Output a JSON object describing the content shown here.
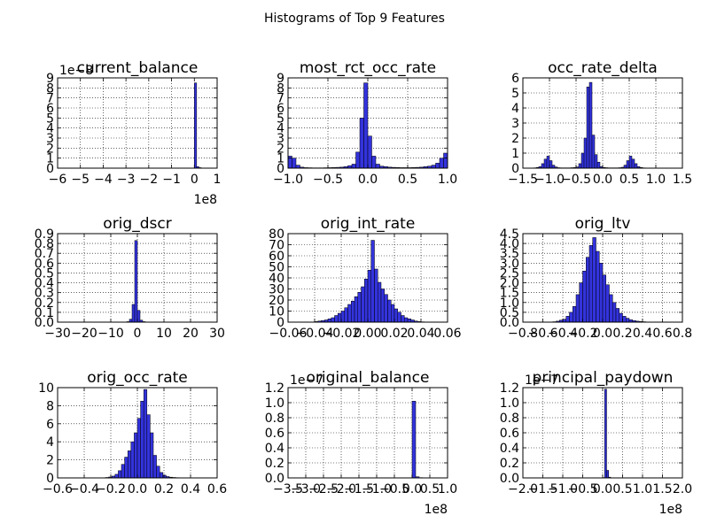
{
  "figure": {
    "title": "Histograms of Top 9 Features",
    "bar_color": "#3333dd"
  },
  "chart_data": [
    {
      "type": "bar",
      "title": "current_balance",
      "xlim": [
        -600000000,
        100000000
      ],
      "ylim": [
        0,
        9e-08
      ],
      "x_ticks": [
        -6,
        -5,
        -4,
        -3,
        -2,
        -1,
        0,
        1
      ],
      "x_tick_labels": [
        "−6",
        "−5",
        "−4",
        "−3",
        "−2",
        "−1",
        "0",
        "1"
      ],
      "y_ticks": [
        0,
        1,
        2,
        3,
        4,
        5,
        6,
        7,
        8,
        9
      ],
      "y_tick_labels": [
        "0",
        "1",
        "2",
        "3",
        "4",
        "5",
        "6",
        "7",
        "8",
        "9"
      ],
      "x_offset": "1e8",
      "y_offset": "1e−8",
      "bin_range": [
        -600000000,
        100000000
      ],
      "values": [
        0,
        0,
        0,
        0,
        0,
        0,
        0,
        0,
        0,
        0,
        0,
        0,
        0,
        0,
        0,
        0,
        0,
        0,
        0,
        0,
        0,
        0,
        0,
        0,
        0,
        0,
        0,
        0,
        0,
        0,
        0,
        0,
        0,
        0,
        0,
        0,
        0,
        0,
        0,
        0,
        0,
        0,
        0,
        0,
        0,
        0,
        0,
        0,
        0,
        0,
        0,
        0,
        0,
        0,
        0,
        0,
        0,
        0,
        0,
        0,
        8.5e-08,
        1.5e-09,
        5e-10,
        2e-10,
        0,
        0,
        0,
        0,
        0,
        0
      ]
    },
    {
      "type": "bar",
      "title": "most_rct_occ_rate",
      "xlim": [
        -1,
        1
      ],
      "ylim": [
        0,
        9
      ],
      "x_ticks": [
        -1,
        -0.5,
        0,
        0.5,
        1
      ],
      "x_tick_labels": [
        "−1.0",
        "−0.5",
        "0.0",
        "0.5",
        "1.0"
      ],
      "y_ticks": [
        0,
        1,
        2,
        3,
        4,
        5,
        6,
        7,
        8,
        9
      ],
      "y_tick_labels": [
        "0",
        "1",
        "2",
        "3",
        "4",
        "5",
        "6",
        "7",
        "8",
        "9"
      ],
      "bin_range": [
        -1,
        1
      ],
      "values": [
        1.2,
        1.0,
        0.3,
        0.1,
        0.05,
        0.04,
        0.03,
        0.03,
        0.03,
        0.04,
        0.05,
        0.06,
        0.08,
        0.1,
        0.15,
        0.25,
        0.4,
        1.6,
        5.0,
        8.5,
        3.2,
        1.2,
        0.4,
        0.2,
        0.15,
        0.1,
        0.08,
        0.06,
        0.05,
        0.05,
        0.05,
        0.06,
        0.08,
        0.1,
        0.15,
        0.2,
        0.3,
        0.5,
        1.0,
        1.5
      ]
    },
    {
      "type": "bar",
      "title": "occ_rate_delta",
      "xlim": [
        -1.5,
        1.5
      ],
      "ylim": [
        0,
        6
      ],
      "x_ticks": [
        -1.5,
        -1,
        -0.5,
        0,
        0.5,
        1,
        1.5
      ],
      "x_tick_labels": [
        "−1.5",
        "−1.0",
        "−0.5",
        "0.0",
        "0.5",
        "1.0",
        "1.5"
      ],
      "y_ticks": [
        0,
        1,
        2,
        3,
        4,
        5,
        6
      ],
      "y_tick_labels": [
        "0",
        "1",
        "2",
        "3",
        "4",
        "5",
        "6"
      ],
      "bin_range": [
        -1.3,
        1.3
      ],
      "values": [
        0.02,
        0.05,
        0.1,
        0.3,
        0.6,
        0.8,
        0.5,
        0.2,
        0.08,
        0.03,
        0.02,
        0.02,
        0.02,
        0.02,
        0.03,
        0.04,
        0.08,
        0.3,
        1.0,
        2.0,
        5.4,
        5.7,
        2.2,
        0.9,
        0.4,
        0.1,
        0.05,
        0.03,
        0.02,
        0.02,
        0.02,
        0.02,
        0.03,
        0.06,
        0.2,
        0.5,
        0.8,
        0.6,
        0.3,
        0.1,
        0.05,
        0.02,
        0.01,
        0.01,
        0.01,
        0.01,
        0,
        0,
        0,
        0,
        0,
        0
      ]
    },
    {
      "type": "bar",
      "title": "orig_dscr",
      "xlim": [
        -30,
        30
      ],
      "ylim": [
        0,
        0.9
      ],
      "x_ticks": [
        -30,
        -20,
        -10,
        0,
        10,
        20,
        30
      ],
      "x_tick_labels": [
        "−30",
        "−20",
        "−10",
        "0",
        "10",
        "20",
        "30"
      ],
      "y_ticks": [
        0,
        0.1,
        0.2,
        0.3,
        0.4,
        0.5,
        0.6,
        0.7,
        0.8,
        0.9
      ],
      "y_tick_labels": [
        "0.0",
        "0.1",
        "0.2",
        "0.3",
        "0.4",
        "0.5",
        "0.6",
        "0.7",
        "0.8",
        "0.9"
      ],
      "bin_range": [
        -30,
        30
      ],
      "values": [
        0,
        0,
        0,
        0,
        0,
        0,
        0,
        0,
        0,
        0,
        0,
        0,
        0,
        0,
        0,
        0,
        0,
        0,
        0,
        0,
        0,
        0,
        0,
        0,
        0,
        0,
        0.005,
        0.03,
        0.18,
        0.83,
        0.12,
        0.02,
        0.005,
        0,
        0,
        0,
        0,
        0,
        0,
        0,
        0,
        0,
        0,
        0,
        0,
        0,
        0,
        0,
        0,
        0,
        0,
        0,
        0,
        0,
        0,
        0,
        0,
        0,
        0,
        0
      ]
    },
    {
      "type": "bar",
      "title": "orig_int_rate",
      "xlim": [
        -0.06,
        0.06
      ],
      "ylim": [
        0,
        80
      ],
      "x_ticks": [
        -0.06,
        -0.04,
        -0.02,
        0,
        0.02,
        0.04,
        0.06
      ],
      "x_tick_labels": [
        "−0.06",
        "−0.04",
        "−0.02",
        "0.00",
        "0.02",
        "0.04",
        "0.06"
      ],
      "y_ticks": [
        0,
        10,
        20,
        30,
        40,
        50,
        60,
        70,
        80
      ],
      "y_tick_labels": [
        "0",
        "10",
        "20",
        "30",
        "40",
        "50",
        "60",
        "70",
        "80"
      ],
      "bin_range": [
        -0.06,
        0.06
      ],
      "values": [
        0,
        0,
        0,
        0,
        0,
        0,
        0,
        0,
        0.5,
        1,
        1.5,
        2,
        3,
        4,
        6,
        8,
        10,
        13,
        16,
        19,
        23,
        27,
        32,
        39,
        47,
        74,
        48,
        36,
        30,
        25,
        20,
        16,
        12,
        9,
        6,
        4,
        3,
        2,
        1,
        0.5,
        0.3,
        0,
        0,
        0,
        0,
        0,
        0,
        0
      ]
    },
    {
      "type": "bar",
      "title": "orig_ltv",
      "xlim": [
        -0.8,
        0.8
      ],
      "ylim": [
        0,
        4.5
      ],
      "x_ticks": [
        -0.8,
        -0.6,
        -0.4,
        -0.2,
        0,
        0.2,
        0.4,
        0.6,
        0.8
      ],
      "x_tick_labels": [
        "−0.8",
        "−0.6",
        "−0.4",
        "−0.2",
        "0.0",
        "0.2",
        "0.4",
        "0.6",
        "0.8"
      ],
      "y_ticks": [
        0,
        0.5,
        1,
        1.5,
        2,
        2.5,
        3,
        3.5,
        4,
        4.5
      ],
      "y_tick_labels": [
        "0.0",
        "0.5",
        "1.0",
        "1.5",
        "2.0",
        "2.5",
        "3.0",
        "3.5",
        "4.0",
        "4.5"
      ],
      "bin_range": [
        -0.8,
        0.8
      ],
      "values": [
        0,
        0,
        0,
        0,
        0,
        0,
        0,
        0,
        0,
        0.02,
        0.05,
        0.1,
        0.15,
        0.3,
        0.5,
        0.8,
        1.4,
        2.0,
        2.6,
        3.3,
        3.9,
        4.3,
        3.6,
        3.0,
        2.4,
        1.9,
        1.4,
        1.0,
        0.7,
        0.45,
        0.3,
        0.2,
        0.12,
        0.08,
        0.05,
        0.03,
        0.02,
        0.01,
        0,
        0,
        0,
        0,
        0,
        0,
        0,
        0,
        0,
        0
      ]
    },
    {
      "type": "bar",
      "title": "orig_occ_rate",
      "xlim": [
        -0.6,
        0.6
      ],
      "ylim": [
        0,
        10
      ],
      "x_ticks": [
        -0.6,
        -0.4,
        -0.2,
        0,
        0.2,
        0.4,
        0.6
      ],
      "x_tick_labels": [
        "−0.6",
        "−0.4",
        "−0.2",
        "0.0",
        "0.2",
        "0.4",
        "0.6"
      ],
      "y_ticks": [
        0,
        2,
        4,
        6,
        8,
        10
      ],
      "y_tick_labels": [
        "0",
        "2",
        "4",
        "6",
        "8",
        "10"
      ],
      "bin_range": [
        -0.6,
        0.6
      ],
      "values": [
        0,
        0,
        0,
        0,
        0,
        0,
        0,
        0,
        0,
        0,
        0,
        0,
        0,
        0,
        0.02,
        0.05,
        0.1,
        0.2,
        0.4,
        0.8,
        1.5,
        2.3,
        3.0,
        4.0,
        5.0,
        6.6,
        8.5,
        9.8,
        7.0,
        5.0,
        2.5,
        1.3,
        0.6,
        0.3,
        0.15,
        0.08,
        0.05,
        0.03,
        0.02,
        0.01,
        0,
        0,
        0,
        0,
        0,
        0,
        0,
        0,
        0,
        0
      ]
    },
    {
      "type": "bar",
      "title": "original_balance",
      "xlim": [
        -350000000,
        100000000
      ],
      "ylim": [
        0,
        1.2e-07
      ],
      "x_ticks": [
        -3.5,
        -3,
        -2.5,
        -2,
        -1.5,
        -1,
        -0.5,
        0,
        0.5,
        1
      ],
      "x_tick_labels": [
        "−3.5",
        "−3.0",
        "−2.5",
        "−2.0",
        "−1.5",
        "−1.0",
        "−0.5",
        "0.0",
        "0.5",
        "1.0"
      ],
      "y_ticks": [
        0,
        0.2,
        0.4,
        0.6,
        0.8,
        1,
        1.2
      ],
      "y_tick_labels": [
        "0.0",
        "0.2",
        "0.4",
        "0.6",
        "0.8",
        "1.0",
        "1.2"
      ],
      "x_offset": "1e8",
      "y_offset": "1e−7",
      "bin_range": [
        -350000000,
        100000000
      ],
      "values": [
        0,
        0,
        0,
        0,
        0,
        0,
        0,
        0,
        0,
        0,
        0,
        0,
        0,
        0,
        0,
        0,
        0,
        0,
        0,
        0,
        0,
        0,
        0,
        0,
        0,
        0,
        0,
        0,
        0,
        0,
        0,
        0,
        0,
        0,
        3e-10,
        1.02e-07,
        1.5e-09,
        4e-10,
        0,
        0,
        0,
        0,
        0,
        0,
        0
      ]
    },
    {
      "type": "bar",
      "title": "principal_paydown",
      "xlim": [
        -200000000,
        200000000
      ],
      "ylim": [
        0,
        1.2e-07
      ],
      "x_ticks": [
        -2,
        -1.5,
        -1,
        -0.5,
        0,
        0.5,
        1,
        1.5,
        2
      ],
      "x_tick_labels": [
        "−2.0",
        "−1.5",
        "−1.0",
        "−0.5",
        "0.0",
        "0.5",
        "1.0",
        "1.5",
        "2.0"
      ],
      "y_ticks": [
        0,
        0.2,
        0.4,
        0.6,
        0.8,
        1,
        1.2
      ],
      "y_tick_labels": [
        "0.0",
        "0.2",
        "0.4",
        "0.6",
        "0.8",
        "1.0",
        "1.2"
      ],
      "x_offset": "1e8",
      "y_offset": "1e−7",
      "bin_range": [
        -200000000,
        200000000
      ],
      "values": [
        0,
        0,
        0,
        0,
        0,
        0,
        0,
        0,
        0,
        0,
        0,
        0,
        0,
        0,
        0,
        0,
        0,
        0,
        0,
        0,
        0,
        0,
        0,
        0,
        0,
        0,
        0,
        0,
        0,
        0,
        0,
        0,
        0,
        0,
        0,
        0,
        0,
        0,
        0,
        0,
        5e-10,
        1.18e-07,
        1e-08,
        1e-09,
        0,
        0,
        0,
        0,
        0,
        0,
        0,
        0,
        0,
        0,
        0,
        0,
        0,
        0,
        0,
        0,
        0,
        0,
        0,
        0,
        0,
        0,
        0,
        0,
        0,
        0,
        0,
        0,
        0,
        0,
        0,
        0,
        0,
        0,
        0,
        0
      ]
    }
  ]
}
